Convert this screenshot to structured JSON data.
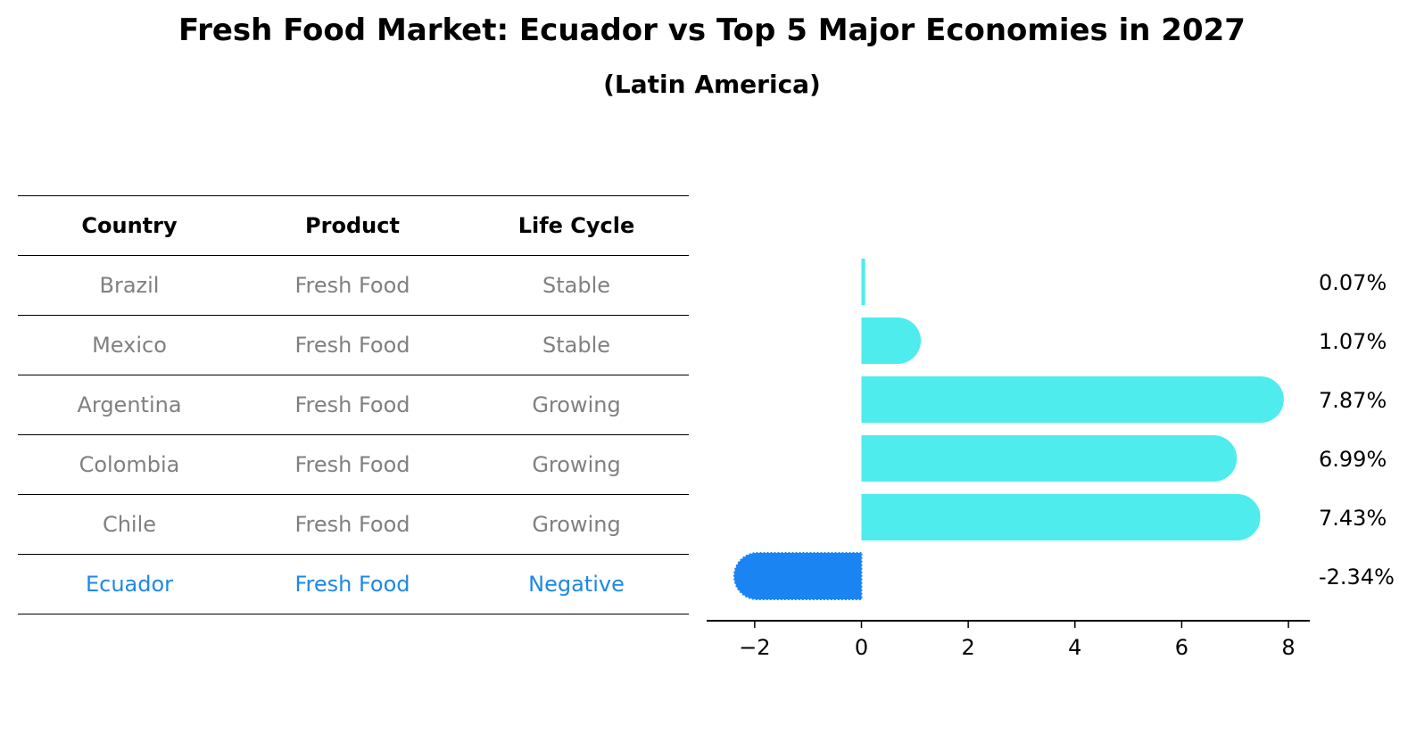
{
  "chart_data": {
    "type": "bar",
    "orientation": "horizontal",
    "title": "Fresh Food Market: Ecuador vs Top 5 Major Economies in 2027",
    "subtitle": "(Latin America)",
    "categories": [
      "Brazil",
      "Mexico",
      "Argentina",
      "Colombia",
      "Chile",
      "Ecuador"
    ],
    "values": [
      0.07,
      1.07,
      7.87,
      6.99,
      7.43,
      -2.34
    ],
    "value_labels": [
      "0.07%",
      "1.07%",
      "7.87%",
      "6.99%",
      "7.43%",
      "-2.34%"
    ],
    "xlim": [
      -2.9,
      8.4
    ],
    "xticks": [
      -2,
      0,
      2,
      4,
      6,
      8
    ],
    "xtick_labels": [
      "−2",
      "0",
      "2",
      "4",
      "6",
      "8"
    ],
    "colors": {
      "positive": "#4eecec",
      "highlight": "#1a84f2"
    },
    "grid": false,
    "table": {
      "headers": [
        "Country",
        "Product",
        "Life Cycle"
      ],
      "rows": [
        [
          "Brazil",
          "Fresh Food",
          "Stable"
        ],
        [
          "Mexico",
          "Fresh Food",
          "Stable"
        ],
        [
          "Argentina",
          "Fresh Food",
          "Growing"
        ],
        [
          "Colombia",
          "Fresh Food",
          "Growing"
        ],
        [
          "Chile",
          "Fresh Food",
          "Growing"
        ],
        [
          "Ecuador",
          "Fresh Food",
          "Negative"
        ]
      ],
      "highlight_row": 5
    }
  }
}
